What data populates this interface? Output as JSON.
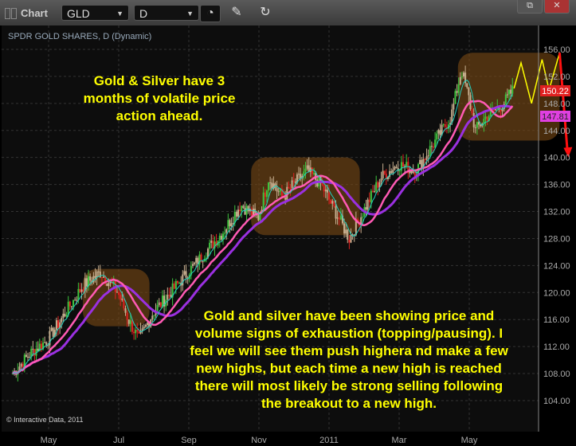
{
  "window": {
    "title": "Chart",
    "symbol": "GLD",
    "interval": "D",
    "icons": [
      "clock-icon",
      "pencil-icon",
      "refresh-chart-icon",
      "restore-icon",
      "close-icon"
    ],
    "close_label": "✕",
    "restore_label": "⧉"
  },
  "chart_data": {
    "type": "candlestick",
    "title": "SPDR GOLD SHARES, D (Dynamic)",
    "copyright": "© Interactive Data, 2011",
    "x_ticks": [
      "May",
      "Jul",
      "Sep",
      "Nov",
      "2011",
      "Mar",
      "May"
    ],
    "y_ticks": [
      "104.00",
      "108.00",
      "112.00",
      "116.00",
      "120.00",
      "124.00",
      "128.00",
      "132.00",
      "136.00",
      "140.00",
      "144.00",
      "148.00",
      "152.00",
      "156.00"
    ],
    "ylim": [
      102,
      158
    ],
    "grid": true,
    "approx_closes": [
      [
        0,
        108
      ],
      [
        0.5,
        111
      ],
      [
        1,
        113
      ],
      [
        1.5,
        117
      ],
      [
        2,
        121
      ],
      [
        2.5,
        123
      ],
      [
        3,
        120
      ],
      [
        3.3,
        116
      ],
      [
        3.6,
        113
      ],
      [
        4,
        117
      ],
      [
        4.5,
        120
      ],
      [
        5,
        123
      ],
      [
        5.5,
        126
      ],
      [
        6,
        129
      ],
      [
        6.5,
        133
      ],
      [
        7,
        131
      ],
      [
        7.3,
        137
      ],
      [
        7.7,
        134
      ],
      [
        8,
        136
      ],
      [
        8.4,
        138
      ],
      [
        8.8,
        136
      ],
      [
        9.1,
        133
      ],
      [
        9.4,
        130
      ],
      [
        9.6,
        128
      ],
      [
        10,
        132
      ],
      [
        10.5,
        137
      ],
      [
        11,
        139
      ],
      [
        11.5,
        138
      ],
      [
        12,
        142
      ],
      [
        12.5,
        146
      ],
      [
        12.8,
        153
      ],
      [
        13,
        149
      ],
      [
        13.2,
        144
      ],
      [
        13.5,
        146
      ],
      [
        14,
        148
      ],
      [
        14.3,
        150.22
      ]
    ],
    "last_price": "150.22",
    "ma_value": "147.81",
    "series_colors": {
      "up": "#3ec43e",
      "down": "#e02020",
      "neutral": "#c8b090",
      "ma_fast": "#20d0c0",
      "ma_mid": "#ff5ab4",
      "ma_slow": "#9a30e0"
    },
    "projection": {
      "zigzag": [
        [
          14.3,
          150.22
        ],
        [
          14.5,
          154
        ],
        [
          14.8,
          148
        ],
        [
          15.1,
          154.5
        ],
        [
          15.3,
          150
        ],
        [
          15.6,
          155.5
        ]
      ],
      "arrow_to": 140
    },
    "highlight_boxes": [
      [
        2,
        3.9,
        115,
        123.5
      ],
      [
        6.8,
        9.9,
        128.5,
        140
      ],
      [
        12.7,
        15.6,
        142.5,
        155.5
      ]
    ],
    "annotations": [
      "Gold & Silver have 3 months of volatile price action ahead.",
      "Gold and silver have been showing price and volume signs of exhaustion (topping/pausing). I feel we will see them push highera nd make a few new highs, but each time a new high is reached there will most likely be strong selling following the breakout to a new high."
    ]
  }
}
